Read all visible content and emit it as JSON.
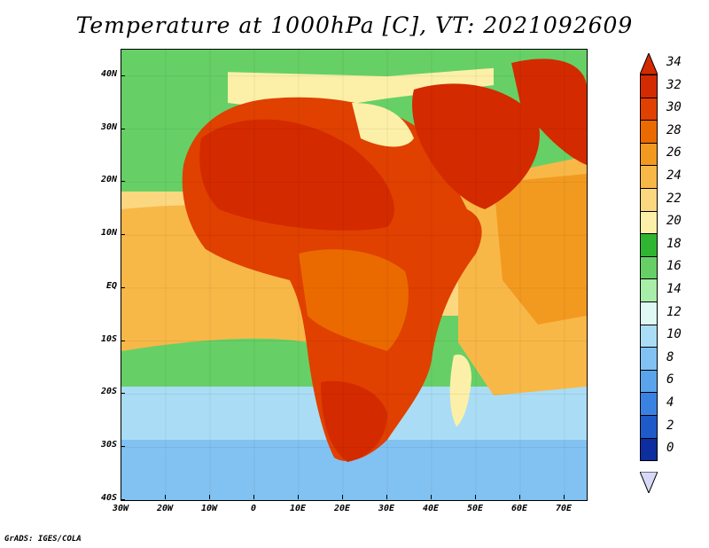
{
  "title": "Temperature at 1000hPa [C], VT: 2021092609",
  "credit": "GrADS: IGES/COLA",
  "map": {
    "variable": "Temperature at 1000hPa",
    "units": "C",
    "region": "Africa",
    "lon_range": [
      -30,
      75
    ],
    "lat_range": [
      -40,
      45
    ],
    "lat_labels": [
      "40N",
      "30N",
      "20N",
      "10N",
      "EQ",
      "10S",
      "20S",
      "30S",
      "40S"
    ],
    "lat_values": [
      40,
      30,
      20,
      10,
      0,
      -10,
      -20,
      -30,
      -40
    ],
    "lon_labels": [
      "30W",
      "20W",
      "10W",
      "0",
      "10E",
      "20E",
      "30E",
      "40E",
      "50E",
      "60E",
      "70E"
    ],
    "lon_values": [
      -30,
      -20,
      -10,
      0,
      10,
      20,
      30,
      40,
      50,
      60,
      70
    ]
  },
  "colorbar": {
    "labels": [
      "34",
      "32",
      "30",
      "28",
      "26",
      "24",
      "22",
      "20",
      "18",
      "16",
      "14",
      "12",
      "10",
      "8",
      "6",
      "4",
      "2",
      "0"
    ],
    "colors": [
      "#d42a00",
      "#e04000",
      "#ea6a00",
      "#f29a20",
      "#f8b848",
      "#fbd880",
      "#fcf0a8",
      "#2fb52f",
      "#66d066",
      "#a8eea8",
      "#dff8f2",
      "#aaddf5",
      "#82c2f2",
      "#5aa4ec",
      "#3a82e2",
      "#1e5ac8",
      "#0c2e9e",
      "#050a68"
    ]
  },
  "legend": {
    "warm": "#e04000",
    "hot": "#d42a00",
    "ocean_warm": "#fbd880",
    "ocean_cool": "#66d066",
    "ocean_cold": "#82c2f2"
  }
}
